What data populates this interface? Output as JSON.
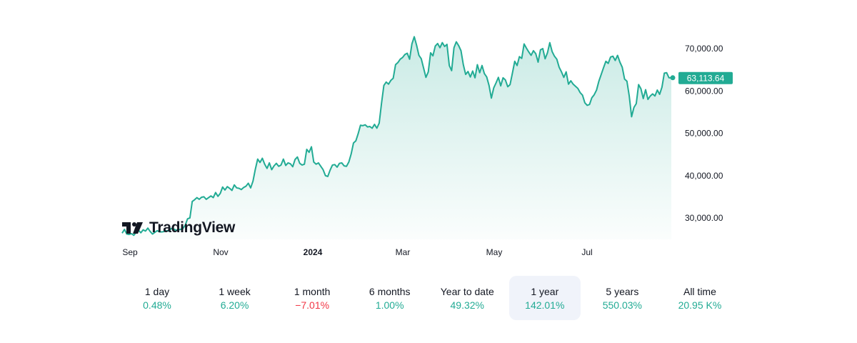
{
  "brand": {
    "name": "TradingView"
  },
  "colors": {
    "line": "#22ab94",
    "fill_top": "#cfeae3",
    "negative": "#f23645",
    "active_bg": "#f0f3fa"
  },
  "chart_data": {
    "type": "area",
    "ylim": [
      25000,
      75000
    ],
    "y_ticks": [
      {
        "value": 70000,
        "label": "70,000.00"
      },
      {
        "value": 60000,
        "label": "60,000.00"
      },
      {
        "value": 50000,
        "label": "50,000.00"
      },
      {
        "value": 40000,
        "label": "40,000.00"
      },
      {
        "value": 30000,
        "label": "30,000.00"
      }
    ],
    "x_ticks": [
      {
        "label": "Sep",
        "bold": false
      },
      {
        "label": "Nov",
        "bold": false
      },
      {
        "label": "2024",
        "bold": true
      },
      {
        "label": "Mar",
        "bold": false
      },
      {
        "label": "May",
        "bold": false
      },
      {
        "label": "Jul",
        "bold": false
      }
    ],
    "last_price": {
      "value": 63113.64,
      "label": "63,113.64"
    },
    "series": [
      {
        "values": [
          26400,
          27300,
          26200,
          26100,
          26300,
          25900,
          26600,
          27100,
          26500,
          27200,
          26900,
          27600,
          26800,
          26200,
          26600,
          27000,
          26700,
          26700,
          26800,
          27000,
          26900,
          27500,
          27400,
          27100,
          27200,
          27300,
          27500,
          28300,
          29800,
          30000,
          33900,
          34300,
          34800,
          34400,
          34900,
          35000,
          34400,
          34800,
          35200,
          34800,
          36000,
          35100,
          35800,
          37300,
          36600,
          37400,
          37000,
          36500,
          37800,
          37100,
          37000,
          36700,
          37200,
          37500,
          38200,
          37100,
          38700,
          41500,
          43900,
          43100,
          44100,
          42700,
          41700,
          43000,
          41400,
          42300,
          42900,
          42200,
          42500,
          43900,
          42400,
          43000,
          42800,
          42100,
          43800,
          44400,
          42900,
          42500,
          42700,
          46200,
          45500,
          46800,
          43200,
          42700,
          43000,
          42200,
          41400,
          40000,
          39800,
          41300,
          42500,
          42600,
          42000,
          42900,
          43000,
          42300,
          42200,
          43200,
          45100,
          47700,
          48200,
          49900,
          51900,
          51800,
          52000,
          51500,
          51600,
          51200,
          52100,
          51200,
          52400,
          57100,
          61300,
          62100,
          61600,
          62500,
          63000,
          66200,
          66700,
          67500,
          67900,
          68600,
          68900,
          67500,
          71100,
          72800,
          70800,
          68400,
          67600,
          65400,
          63200,
          64500,
          69000,
          68300,
          70600,
          71200,
          70200,
          71400,
          70500,
          71000,
          66000,
          64800,
          70200,
          71600,
          70700,
          69500,
          66200,
          63900,
          64600,
          63300,
          64700,
          63100,
          66200,
          64300,
          66000,
          64100,
          63300,
          61300,
          58300,
          60700,
          61900,
          63200,
          61200,
          63100,
          62600,
          61000,
          61500,
          64200,
          67000,
          66000,
          68100,
          67700,
          71100,
          70100,
          69200,
          68400,
          69500,
          68800,
          66800,
          69700,
          70000,
          67600,
          69000,
          71400,
          69300,
          68200,
          67500,
          65600,
          64500,
          63200,
          64500,
          61600,
          62400,
          61600,
          61100,
          60600,
          59600,
          59000,
          57200,
          56600,
          56800,
          58400,
          59100,
          60200,
          62300,
          63900,
          65500,
          67000,
          66500,
          68000,
          68200,
          67200,
          68400,
          66800,
          65600,
          62800,
          62300,
          58800,
          53900,
          56100,
          57000,
          61500,
          60500,
          58200,
          60300,
          58000,
          58800,
          59300,
          58800,
          60200,
          59200,
          60900,
          64200,
          64300,
          63100,
          63100
        ]
      }
    ]
  },
  "ranges": [
    {
      "label": "1 day",
      "change": "0.48%",
      "negative": false,
      "active": false
    },
    {
      "label": "1 week",
      "change": "6.20%",
      "negative": false,
      "active": false
    },
    {
      "label": "1 month",
      "change": "−7.01%",
      "negative": true,
      "active": false
    },
    {
      "label": "6 months",
      "change": "1.00%",
      "negative": false,
      "active": false
    },
    {
      "label": "Year to date",
      "change": "49.32%",
      "negative": false,
      "active": false
    },
    {
      "label": "1 year",
      "change": "142.01%",
      "negative": false,
      "active": true
    },
    {
      "label": "5 years",
      "change": "550.03%",
      "negative": false,
      "active": false
    },
    {
      "label": "All time",
      "change": "20.95 K%",
      "negative": false,
      "active": false
    }
  ]
}
